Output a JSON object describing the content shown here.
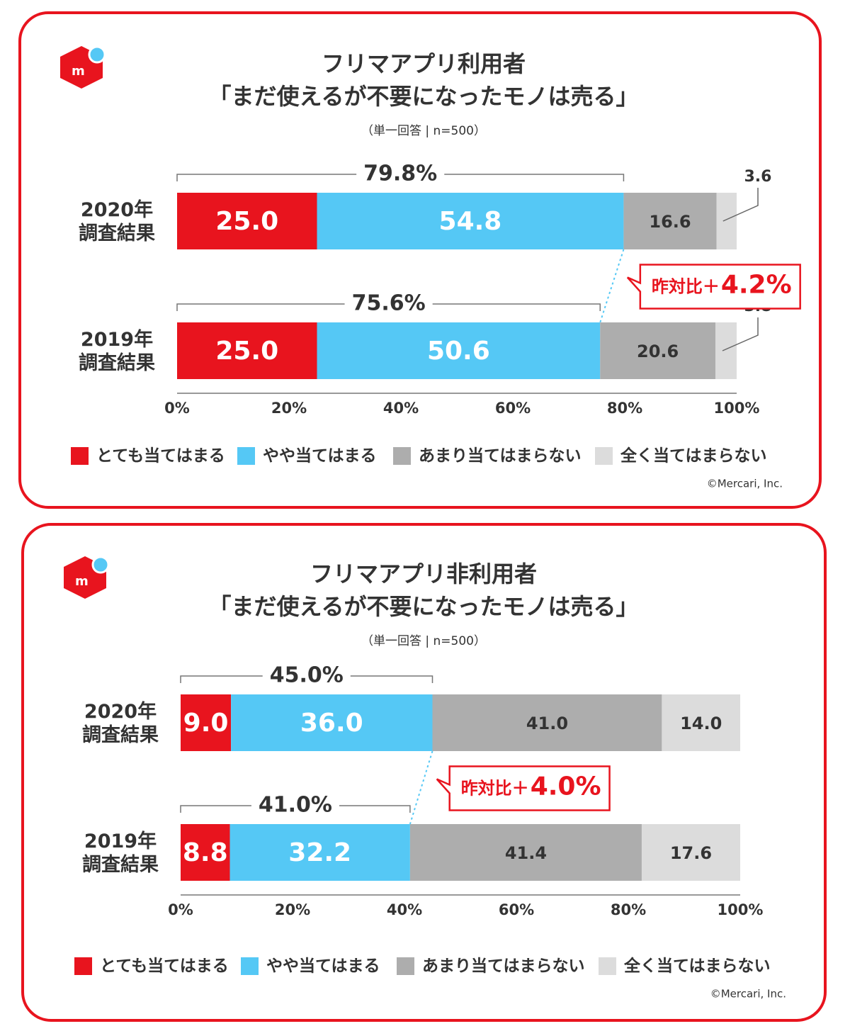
{
  "chart_data": [
    {
      "type": "bar",
      "orientation": "horizontal",
      "stacked": true,
      "title": "フリマアプリ利用者",
      "subtitle": "「まだ使えるが不要になったモノは売る」",
      "note": "（単一回答 | n=500）",
      "categories": [
        "2020年\n調査結果",
        "2019年\n調査結果"
      ],
      "series": [
        {
          "name": "とても当てはまる",
          "color": "#e8141e",
          "values": [
            25.0,
            25.0
          ],
          "value_labels": [
            "25.0",
            "25.0"
          ]
        },
        {
          "name": "やや当てはまる",
          "color": "#55c8f5",
          "values": [
            54.8,
            50.6
          ]
        },
        {
          "name": "あまり当てはまらない",
          "color": "#adadad",
          "values": [
            16.6,
            20.6
          ]
        },
        {
          "name": "全く当てはまらない",
          "color": "#dcdcdc",
          "values": [
            3.6,
            3.8
          ]
        }
      ],
      "totals": [
        {
          "value": 79.8,
          "label": "79.8%"
        },
        {
          "value": 75.6,
          "label": "75.6%"
        }
      ],
      "yoy_prefix": "昨対比＋",
      "yoy": {
        "value": 4.2,
        "label": "4.2%"
      },
      "xlim": [
        0,
        100
      ],
      "xticks": [
        {
          "value": 0,
          "label": "0%"
        },
        {
          "value": 20,
          "label": "20%"
        },
        {
          "value": 40,
          "label": "40%"
        },
        {
          "value": 60,
          "label": "60%"
        },
        {
          "value": 80,
          "label": "80%"
        },
        {
          "value": 100,
          "label": "100%"
        }
      ],
      "legend": "bottom",
      "copyright": "©Mercari, Inc."
    },
    {
      "type": "bar",
      "orientation": "horizontal",
      "stacked": true,
      "title": "フリマアプリ非利用者",
      "subtitle": "「まだ使えるが不要になったモノは売る」",
      "note": "（単一回答 | n=500）",
      "categories": [
        "2020年\n調査結果",
        "2019年\n調査結果"
      ],
      "series": [
        {
          "name": "とても当てはまる",
          "color": "#e8141e",
          "values": [
            9.0,
            8.8
          ],
          "value_labels": [
            "9.0",
            "8.8"
          ]
        },
        {
          "name": "やや当てはまる",
          "color": "#55c8f5",
          "values": [
            36.0,
            32.2
          ],
          "value_labels": [
            "36.0",
            "32.2"
          ]
        },
        {
          "name": "あまり当てはまらない",
          "color": "#adadad",
          "values": [
            41.0,
            41.4
          ],
          "value_labels": [
            "41.0",
            "41.4"
          ]
        },
        {
          "name": "全く当てはまらない",
          "color": "#dcdcdc",
          "values": [
            14.0,
            17.6
          ],
          "value_labels": [
            "14.0",
            "17.6"
          ]
        }
      ],
      "totals": [
        {
          "value": 45.0,
          "label": "45.0%"
        },
        {
          "value": 41.0,
          "label": "41.0%"
        }
      ],
      "yoy_prefix": "昨対比＋",
      "yoy": {
        "value": 4.0,
        "label": "4.0%"
      },
      "xlim": [
        0,
        100
      ],
      "xticks": [
        {
          "value": 0,
          "label": "0%"
        },
        {
          "value": 20,
          "label": "20%"
        },
        {
          "value": 40,
          "label": "40%"
        },
        {
          "value": 60,
          "label": "60%"
        },
        {
          "value": 80,
          "label": "80%"
        },
        {
          "value": 100,
          "label": "100%"
        }
      ],
      "legend": "bottom",
      "copyright": "©Mercari, Inc."
    }
  ]
}
